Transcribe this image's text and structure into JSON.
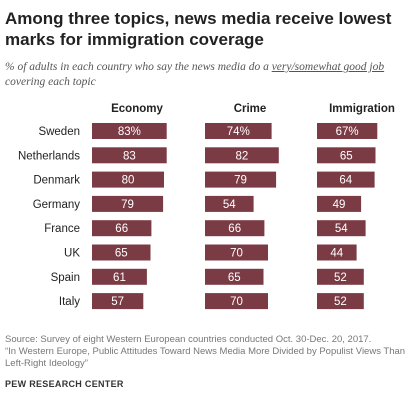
{
  "header": {
    "title": "Among three topics, news media receive lowest marks for immigration coverage",
    "subtitle_pre": "% of adults in each country who say the news media do a ",
    "subtitle_underlined": "very/somewhat good job",
    "subtitle_post": " covering each topic"
  },
  "footer": {
    "source_line1": "Source: Survey of eight Western European countries conducted Oct. 30-Dec. 20, 2017.",
    "source_line2": "“In Western Europe, Public Attitudes Toward News Media More Divided by Populist Views Than Left-Right Ideology”",
    "credit": "PEW RESEARCH CENTER"
  },
  "colors": {
    "bar": "#7b3b44",
    "bar_text": "#ffffff",
    "label": "#222222"
  },
  "chart_data": {
    "type": "bar",
    "categories": [
      "Sweden",
      "Netherlands",
      "Denmark",
      "Germany",
      "France",
      "UK",
      "Spain",
      "Italy"
    ],
    "panels": [
      {
        "name": "Economy",
        "values": [
          83,
          83,
          80,
          79,
          66,
          65,
          61,
          57
        ],
        "labels": [
          "83%",
          "83",
          "80",
          "79",
          "66",
          "65",
          "61",
          "57"
        ]
      },
      {
        "name": "Crime",
        "values": [
          74,
          82,
          79,
          54,
          66,
          70,
          65,
          70
        ],
        "labels": [
          "74%",
          "82",
          "79",
          "54",
          "66",
          "70",
          "65",
          "70"
        ]
      },
      {
        "name": "Immigration",
        "values": [
          67,
          65,
          64,
          49,
          54,
          44,
          52,
          52
        ],
        "labels": [
          "67%",
          "65",
          "64",
          "49",
          "54",
          "44",
          "52",
          "52"
        ]
      }
    ],
    "xlim": [
      0,
      100
    ],
    "grid": false,
    "legend": "none"
  }
}
